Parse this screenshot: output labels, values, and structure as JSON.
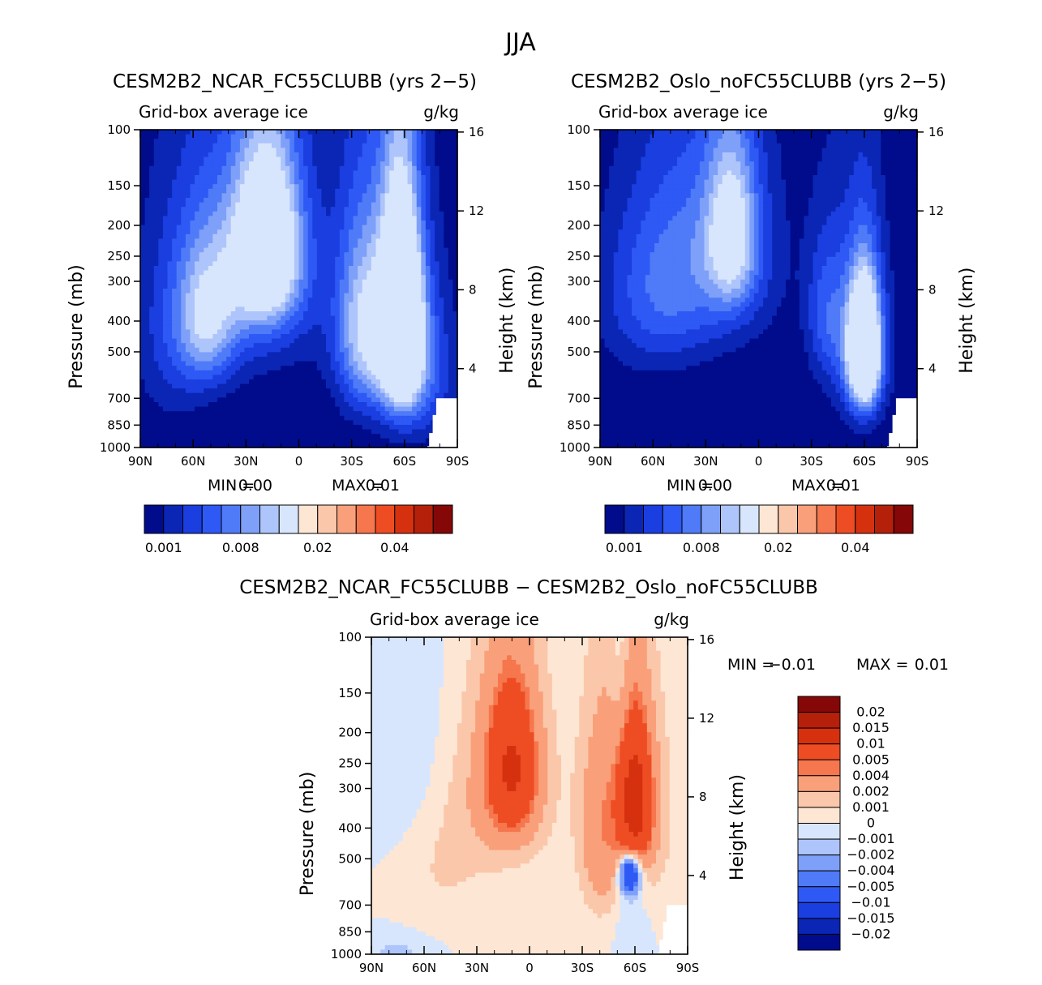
{
  "figure": {
    "title": "JJA"
  },
  "chart_data": [
    {
      "type": "heatmap",
      "title": "CESM2B2_NCAR_FC55CLUBB (yrs 2-5)",
      "subtitle_left": "Grid-box average ice",
      "subtitle_right": "g/kg",
      "xlabel": "",
      "ylabel": "Pressure (mb)",
      "y2label": "Height (km)",
      "x_ticks": [
        "90N",
        "60N",
        "30N",
        "0",
        "30S",
        "60S",
        "90S"
      ],
      "y_ticks": [
        "100",
        "150",
        "200",
        "250",
        "300",
        "400",
        "500",
        "700",
        "850",
        "1000"
      ],
      "y2_ticks": [
        "16",
        "12",
        "8",
        "4"
      ],
      "xlim": [
        90,
        -90
      ],
      "ylim": [
        1000,
        100
      ],
      "stats_min_label": "MIN =",
      "stats_min": "0.00",
      "stats_max_label": "MAX =",
      "stats_max": "0.01",
      "colorbar_labels": [
        "0.001",
        "0.008",
        "0.02",
        "0.04"
      ],
      "colorbar_colors": [
        "#000c8b",
        "#0b26b5",
        "#1a3ee0",
        "#2e59f5",
        "#4f7bf8",
        "#7ea0f9",
        "#aec5fb",
        "#d8e6fd",
        "#fde6d4",
        "#fbc7aa",
        "#f9a07a",
        "#f6764d",
        "#ee4d23",
        "#d6310f",
        "#b5200a",
        "#850707"
      ],
      "blobs": [
        {
          "lat": 18,
          "p": 230,
          "amp": 0.01,
          "sx": 14,
          "sy": 110
        },
        {
          "lat": 52,
          "p": 390,
          "amp": 0.005,
          "sx": 12,
          "sy": 150
        },
        {
          "lat": 30,
          "p": 310,
          "amp": 0.003,
          "sx": 30,
          "sy": 180
        },
        {
          "lat": 72,
          "p": 470,
          "amp": 0.0018,
          "sx": 16,
          "sy": 260
        },
        {
          "lat": -58,
          "p": 400,
          "amp": 0.013,
          "sx": 8,
          "sy": 200
        },
        {
          "lat": -50,
          "p": 420,
          "amp": 0.0045,
          "sx": 18,
          "sy": 240
        },
        {
          "lat": -35,
          "p": 420,
          "amp": 0.004,
          "sx": 10,
          "sy": 200
        },
        {
          "lat": -70,
          "p": 620,
          "amp": 0.0025,
          "sx": 14,
          "sy": 220
        }
      ],
      "surface_mask": [
        [
          -80,
          700
        ],
        [
          -78,
          700
        ],
        [
          -78,
          790
        ],
        [
          -76,
          790
        ],
        [
          -76,
          900
        ],
        [
          -74,
          900
        ],
        [
          -74,
          990
        ],
        [
          -73,
          990
        ],
        [
          -73,
          1000
        ]
      ]
    },
    {
      "type": "heatmap",
      "title": "CESM2B2_Oslo_noFC55CLUBB (yrs 2-5)",
      "subtitle_left": "Grid-box average ice",
      "subtitle_right": "g/kg",
      "xlabel": "",
      "ylabel": "Pressure (mb)",
      "y2label": "Height (km)",
      "x_ticks": [
        "90N",
        "60N",
        "30N",
        "0",
        "30S",
        "60S",
        "90S"
      ],
      "y_ticks": [
        "100",
        "150",
        "200",
        "250",
        "300",
        "400",
        "500",
        "700",
        "850",
        "1000"
      ],
      "y2_ticks": [
        "16",
        "12",
        "8",
        "4"
      ],
      "xlim": [
        90,
        -90
      ],
      "ylim": [
        1000,
        100
      ],
      "stats_min_label": "MIN =",
      "stats_min": "0.00",
      "stats_max_label": "MAX =",
      "stats_max": "0.01",
      "colorbar_labels": [
        "0.001",
        "0.008",
        "0.02",
        "0.04"
      ],
      "colorbar_colors": [
        "#000c8b",
        "#0b26b5",
        "#1a3ee0",
        "#2e59f5",
        "#4f7bf8",
        "#7ea0f9",
        "#aec5fb",
        "#d8e6fd",
        "#fde6d4",
        "#fbc7aa",
        "#f9a07a",
        "#f6764d",
        "#ee4d23",
        "#d6310f",
        "#b5200a",
        "#850707"
      ],
      "blobs": [
        {
          "lat": 15,
          "p": 210,
          "amp": 0.006,
          "sx": 10,
          "sy": 90
        },
        {
          "lat": 25,
          "p": 240,
          "amp": 0.0035,
          "sx": 26,
          "sy": 150
        },
        {
          "lat": 60,
          "p": 330,
          "amp": 0.003,
          "sx": 22,
          "sy": 160
        },
        {
          "lat": -60,
          "p": 500,
          "amp": 0.012,
          "sx": 6,
          "sy": 150
        },
        {
          "lat": -58,
          "p": 460,
          "amp": 0.0045,
          "sx": 11,
          "sy": 230
        },
        {
          "lat": -38,
          "p": 380,
          "amp": 0.003,
          "sx": 8,
          "sy": 150
        }
      ],
      "surface_mask": [
        [
          -80,
          700
        ],
        [
          -78,
          700
        ],
        [
          -78,
          790
        ],
        [
          -76,
          790
        ],
        [
          -76,
          900
        ],
        [
          -74,
          900
        ],
        [
          -74,
          990
        ],
        [
          -73,
          990
        ],
        [
          -73,
          1000
        ]
      ]
    },
    {
      "type": "heatmap",
      "title": "CESM2B2_NCAR_FC55CLUBB - CESM2B2_Oslo_noFC55CLUBB",
      "subtitle_left": "Grid-box average ice",
      "subtitle_right": "g/kg",
      "xlabel": "",
      "ylabel": "Pressure (mb)",
      "y2label": "Height (km)",
      "x_ticks": [
        "90N",
        "60N",
        "30N",
        "0",
        "30S",
        "60S",
        "90S"
      ],
      "y_ticks": [
        "100",
        "150",
        "200",
        "250",
        "300",
        "400",
        "500",
        "700",
        "850",
        "1000"
      ],
      "y2_ticks": [
        "16",
        "12",
        "8",
        "4"
      ],
      "xlim": [
        90,
        -90
      ],
      "ylim": [
        1000,
        100
      ],
      "stats_min_label": "MIN =",
      "stats_min": "-0.01",
      "stats_max_label": "MAX =",
      "stats_max": "0.01",
      "colorbar_labels": [
        "0.02",
        "0.015",
        "0.01",
        "0.005",
        "0.004",
        "0.002",
        "0.001",
        "0",
        "-0.001",
        "-0.002",
        "-0.004",
        "-0.005",
        "-0.01",
        "-0.015",
        "-0.02"
      ],
      "colorbar_colors": [
        "#850707",
        "#b5200a",
        "#d6310f",
        "#ee4d23",
        "#f6764d",
        "#f9a07a",
        "#fbc7aa",
        "#fde6d4",
        "#d8e6fd",
        "#aec5fb",
        "#7ea0f9",
        "#4f7bf8",
        "#2e59f5",
        "#1a3ee0",
        "#0b26b5",
        "#000c8b"
      ],
      "blobs": [
        {
          "lat": 10,
          "p": 260,
          "amp": 0.008,
          "sx": 9,
          "sy": 90
        },
        {
          "lat": 12,
          "p": 280,
          "amp": 0.003,
          "sx": 18,
          "sy": 160
        },
        {
          "lat": 50,
          "p": 430,
          "amp": 0.0014,
          "sx": 18,
          "sy": 240
        },
        {
          "lat": -40,
          "p": 420,
          "amp": 0.0028,
          "sx": 9,
          "sy": 220
        },
        {
          "lat": -60,
          "p": 330,
          "amp": 0.011,
          "sx": 6,
          "sy": 110
        },
        {
          "lat": -60,
          "p": 360,
          "amp": 0.003,
          "sx": 14,
          "sy": 200
        },
        {
          "lat": -57,
          "p": 560,
          "amp": -0.011,
          "sx": 4,
          "sy": 55
        },
        {
          "lat": -58,
          "p": 700,
          "amp": -0.0013,
          "sx": 6,
          "sy": 260
        },
        {
          "lat": 65,
          "p": 220,
          "amp": -0.0014,
          "sx": 18,
          "sy": 180
        },
        {
          "lat": 75,
          "p": 1000,
          "amp": -0.0013,
          "sx": 14,
          "sy": 100
        },
        {
          "lat": -52,
          "p": 130,
          "amp": -0.0012,
          "sx": 4,
          "sy": 60
        }
      ],
      "surface_mask": [
        [
          -80,
          700
        ],
        [
          -78,
          700
        ],
        [
          -78,
          790
        ],
        [
          -76,
          790
        ],
        [
          -76,
          900
        ],
        [
          -74,
          900
        ],
        [
          -74,
          990
        ],
        [
          -73,
          990
        ],
        [
          -73,
          1000
        ]
      ]
    }
  ]
}
